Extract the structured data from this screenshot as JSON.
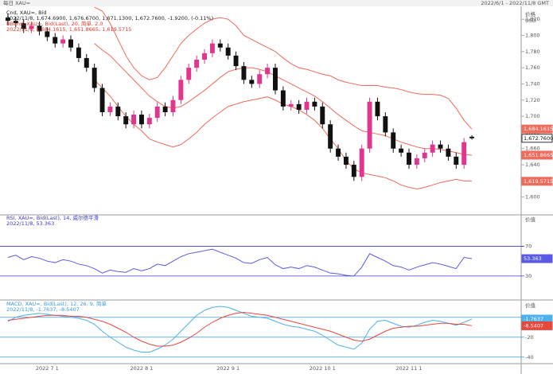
{
  "header": {
    "left": "每日 XAU=",
    "right": "2022/6/1 - 2022/11/8 GMT"
  },
  "chart_data": [
    {
      "type": "candlestick",
      "y_label": "价格",
      "y_unit": "USD",
      "legend_lines": [
        {
          "text": "Cnd, XAU=, Bid",
          "color": "#222222"
        },
        {
          "text": "2022/11/8, 1,674.6900, 1,676.6700, 1,671.1300, 1,672.7600, -1.9200, (-0.11%)",
          "color": "#222222"
        },
        {
          "text": "BBand, XAU=, Bid(Last), 20, 简单, 2.0",
          "color": "#e0392b"
        },
        {
          "text": "2022/11/8, 1,684.1615, 1,651.8665, 1,619.5715",
          "color": "#e0392b"
        }
      ],
      "categories": [
        null,
        null,
        null,
        null,
        null,
        "2022 7 1",
        null,
        null,
        null,
        null,
        null,
        null,
        null,
        null,
        null,
        null,
        null,
        "2022 8 1",
        null,
        null,
        null,
        null,
        null,
        null,
        null,
        null,
        null,
        null,
        "2022 9 1",
        null,
        null,
        null,
        null,
        null,
        null,
        null,
        null,
        null,
        null,
        null,
        "2022 10 1",
        null,
        null,
        null,
        null,
        null,
        null,
        null,
        null,
        null,
        null,
        "2022 11 1",
        null,
        null,
        null,
        null,
        null,
        null,
        null,
        null
      ],
      "up_color": "#e0368e",
      "down_color": "#111111",
      "open": [
        1822,
        1818,
        1815,
        1808,
        1812,
        1805,
        1798,
        1790,
        1795,
        1785,
        1772,
        1760,
        1735,
        1705,
        1712,
        1700,
        1690,
        1702,
        1690,
        1698,
        1712,
        1705,
        1720,
        1745,
        1760,
        1770,
        1778,
        1790,
        1785,
        1775,
        1762,
        1745,
        1740,
        1752,
        1760,
        1732,
        1712,
        1715,
        1708,
        1718,
        1712,
        1690,
        1660,
        1650,
        1640,
        1625,
        1660,
        1718,
        1700,
        1680,
        1660,
        1655,
        1640,
        1648,
        1655,
        1665,
        1660,
        1650,
        1640,
        1674.69
      ],
      "high": [
        1827,
        1823,
        1820,
        1817,
        1817,
        1810,
        1803,
        1800,
        1800,
        1790,
        1777,
        1765,
        1740,
        1717,
        1717,
        1705,
        1707,
        1707,
        1703,
        1717,
        1717,
        1725,
        1750,
        1765,
        1775,
        1783,
        1795,
        1795,
        1790,
        1780,
        1767,
        1750,
        1757,
        1765,
        1765,
        1737,
        1720,
        1720,
        1723,
        1723,
        1717,
        1695,
        1665,
        1655,
        1645,
        1665,
        1723,
        1723,
        1705,
        1685,
        1665,
        1660,
        1653,
        1660,
        1670,
        1670,
        1665,
        1655,
        1673,
        1676.67
      ],
      "low": [
        1813,
        1810,
        1803,
        1803,
        1800,
        1793,
        1785,
        1785,
        1780,
        1767,
        1755,
        1730,
        1700,
        1700,
        1695,
        1685,
        1685,
        1685,
        1685,
        1693,
        1700,
        1700,
        1715,
        1740,
        1755,
        1765,
        1773,
        1780,
        1770,
        1757,
        1740,
        1735,
        1735,
        1747,
        1727,
        1707,
        1707,
        1703,
        1703,
        1707,
        1685,
        1655,
        1645,
        1635,
        1620,
        1620,
        1655,
        1695,
        1675,
        1655,
        1650,
        1635,
        1635,
        1643,
        1650,
        1655,
        1645,
        1635,
        1635,
        1671.13
      ],
      "close": [
        1818,
        1815,
        1808,
        1812,
        1805,
        1798,
        1790,
        1795,
        1785,
        1772,
        1760,
        1735,
        1705,
        1712,
        1700,
        1690,
        1702,
        1690,
        1698,
        1712,
        1705,
        1720,
        1745,
        1760,
        1770,
        1778,
        1790,
        1785,
        1775,
        1762,
        1745,
        1740,
        1752,
        1760,
        1732,
        1712,
        1715,
        1708,
        1718,
        1712,
        1690,
        1660,
        1650,
        1640,
        1625,
        1660,
        1718,
        1700,
        1680,
        1660,
        1655,
        1640,
        1648,
        1655,
        1665,
        1660,
        1650,
        1640,
        1668,
        1672.76
      ],
      "last_label": "1,672.7600",
      "overlays": [
        {
          "color": "#ef6a5a",
          "last_label": "1,684.1615",
          "values": [
            null,
            null,
            null,
            null,
            null,
            null,
            null,
            null,
            null,
            null,
            null,
            1835,
            1830,
            1815,
            1795,
            1775,
            1760,
            1750,
            1745,
            1748,
            1760,
            1775,
            1790,
            1800,
            1808,
            1815,
            1820,
            1822,
            1820,
            1812,
            1800,
            1795,
            1790,
            1785,
            1780,
            1772,
            1765,
            1760,
            1758,
            1755,
            1752,
            1750,
            1745,
            1742,
            1740,
            1738,
            1738,
            1738,
            1736,
            1735,
            1733,
            1730,
            1728,
            1727,
            1727,
            1726,
            1722,
            1710,
            1695,
            1684.16
          ]
        },
        {
          "color": "#ef6a5a",
          "last_label": "1,651.8665",
          "values": [
            null,
            null,
            null,
            null,
            null,
            null,
            null,
            null,
            null,
            null,
            null,
            1790,
            1782,
            1775,
            1765,
            1755,
            1745,
            1735,
            1725,
            1718,
            1712,
            1710,
            1712,
            1718,
            1725,
            1732,
            1740,
            1748,
            1755,
            1758,
            1760,
            1760,
            1758,
            1755,
            1750,
            1745,
            1740,
            1735,
            1730,
            1725,
            1718,
            1710,
            1702,
            1695,
            1688,
            1682,
            1680,
            1678,
            1676,
            1672,
            1668,
            1665,
            1662,
            1660,
            1660,
            1659,
            1657,
            1655,
            1653,
            1651.87
          ]
        },
        {
          "color": "#ef6a5a",
          "last_label": "1,619.5715",
          "values": [
            null,
            null,
            null,
            null,
            null,
            null,
            null,
            null,
            null,
            null,
            null,
            1745,
            1735,
            1725,
            1712,
            1700,
            1690,
            1682,
            1672,
            1668,
            1665,
            1662,
            1665,
            1672,
            1680,
            1690,
            1698,
            1705,
            1712,
            1715,
            1718,
            1720,
            1722,
            1724,
            1720,
            1715,
            1712,
            1708,
            1702,
            1695,
            1685,
            1672,
            1660,
            1645,
            1635,
            1630,
            1628,
            1626,
            1624,
            1620,
            1615,
            1612,
            1610,
            1612,
            1615,
            1618,
            1620,
            1622,
            1620,
            1619.57
          ]
        }
      ],
      "ylim": [
        1580,
        1830
      ],
      "yticks": [
        {
          "value": 1600,
          "label": "1,600"
        },
        {
          "value": 1620,
          "label": "1,620"
        },
        {
          "value": 1640,
          "label": "1,640"
        },
        {
          "value": 1660,
          "label": "1,660"
        },
        {
          "value": 1680,
          "label": "1,680"
        },
        {
          "value": 1700,
          "label": "1,700"
        },
        {
          "value": 1720,
          "label": "1,720"
        },
        {
          "value": 1740,
          "label": "1,740"
        },
        {
          "value": 1760,
          "label": "1,760"
        },
        {
          "value": 1780,
          "label": "1,780"
        },
        {
          "value": 1800,
          "label": "1,800"
        },
        {
          "value": 1820,
          "label": "1,820"
        }
      ]
    },
    {
      "type": "line",
      "y_label": "价值",
      "legend_lines": [
        {
          "text": "RSI, XAU=, Bid(Last), 14, 威尔德平滑",
          "color": "#3a3ad0"
        },
        {
          "text": "2022/11/8, 53.363",
          "color": "#3a3ad0"
        }
      ],
      "series": [
        {
          "color": "#5a5ae6",
          "last_label": "53.363",
          "values": [
            55,
            58,
            52,
            56,
            54,
            50,
            48,
            52,
            50,
            46,
            44,
            40,
            34,
            38,
            36,
            35,
            40,
            37,
            40,
            46,
            44,
            50,
            56,
            60,
            62,
            64,
            66,
            62,
            58,
            54,
            48,
            47,
            52,
            55,
            45,
            40,
            42,
            40,
            44,
            42,
            38,
            34,
            33,
            31,
            30,
            42,
            60,
            55,
            50,
            44,
            42,
            38,
            42,
            45,
            48,
            46,
            43,
            40,
            55,
            53.363
          ]
        }
      ],
      "ylim": [
        0,
        110
      ],
      "yticks": [
        30,
        70
      ],
      "tick_line_color": "#3a3ad0"
    },
    {
      "type": "line",
      "y_label": "价值",
      "legend_lines": [
        {
          "text": "MACD, XAU=, Bid(Last), 12, 26, 9, 简单",
          "color": "#3a9ad9"
        },
        {
          "text": "2022/11/8, -1.7637, -8.5407",
          "color": "#3a9ad9"
        }
      ],
      "series": [
        {
          "color": "#4db0ee",
          "last_label": "-1.7637",
          "values": [
            -4,
            0,
            2,
            3,
            4,
            3,
            2,
            1,
            0,
            -1,
            -3,
            -7,
            -14,
            -20,
            -25,
            -30,
            -33,
            -35,
            -35,
            -32,
            -28,
            -22,
            -14,
            -6,
            2,
            7,
            10,
            11,
            10,
            7,
            4,
            1,
            0,
            -1,
            -4,
            -7,
            -9,
            -10,
            -12,
            -14,
            -18,
            -23,
            -28,
            -30,
            -32,
            -26,
            -12,
            -4,
            -3,
            -6,
            -9,
            -10,
            -8,
            -5,
            -3,
            -4,
            -6,
            -8,
            -5,
            -1.7637
          ]
        },
        {
          "color": "#e8483c",
          "last_label": "-8.5407",
          "values": [
            -3,
            -2,
            -1,
            0,
            1,
            2,
            2,
            2,
            1,
            1,
            0,
            -2,
            -4,
            -7,
            -11,
            -15,
            -20,
            -24,
            -27,
            -29,
            -29,
            -28,
            -25,
            -21,
            -16,
            -10,
            -5,
            -1,
            2,
            4,
            5,
            4,
            3,
            2,
            0,
            -2,
            -4,
            -6,
            -8,
            -10,
            -12,
            -14,
            -17,
            -20,
            -23,
            -24,
            -22,
            -18,
            -14,
            -11,
            -10,
            -9,
            -9,
            -8,
            -7,
            -6,
            -6,
            -7,
            -7,
            -8.5407
          ]
        }
      ],
      "ylim": [
        -45,
        15
      ],
      "yticks": [
        -40,
        -20,
        0
      ],
      "tick_line_color": "#3a9ad9"
    }
  ]
}
